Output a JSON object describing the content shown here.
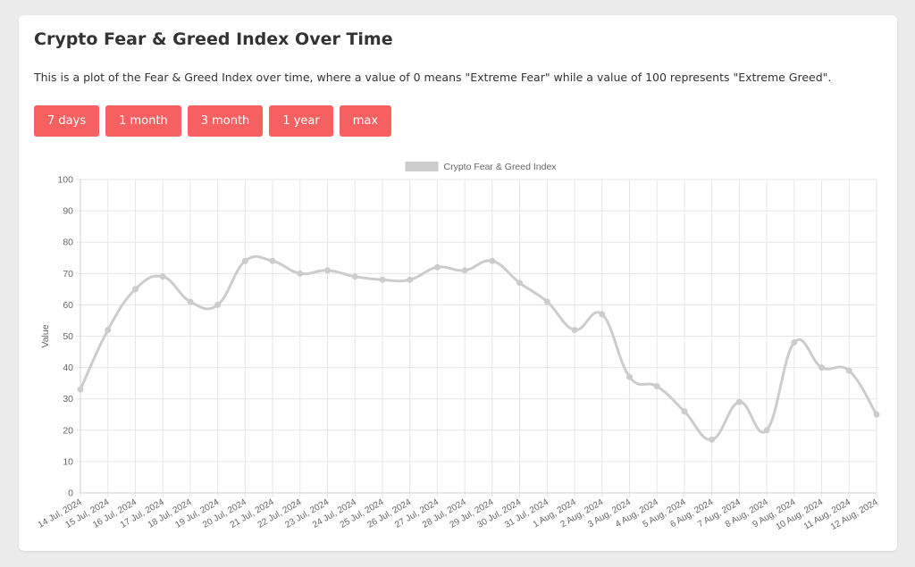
{
  "header": {
    "title": "Crypto Fear & Greed Index Over Time",
    "description": "This is a plot of the Fear & Greed Index over time, where a value of 0 means \"Extreme Fear\" while a value of 100 represents \"Extreme Greed\"."
  },
  "range_buttons": [
    {
      "label": "7 days"
    },
    {
      "label": "1 month"
    },
    {
      "label": "3 month"
    },
    {
      "label": "1 year"
    },
    {
      "label": "max"
    }
  ],
  "colors": {
    "button": "#f76060",
    "series": "#cccccc",
    "grid": "#e6e6e6",
    "text": "#666666"
  },
  "chart_data": {
    "type": "line",
    "title": "",
    "xlabel": "",
    "ylabel": "Value",
    "ylim": [
      0,
      100
    ],
    "yticks": [
      0,
      10,
      20,
      30,
      40,
      50,
      60,
      70,
      80,
      90,
      100
    ],
    "grid": true,
    "legend_position": "top-center",
    "categories": [
      "14 Jul, 2024",
      "15 Jul, 2024",
      "16 Jul, 2024",
      "17 Jul, 2024",
      "18 Jul, 2024",
      "19 Jul, 2024",
      "20 Jul, 2024",
      "21 Jul, 2024",
      "22 Jul, 2024",
      "23 Jul, 2024",
      "24 Jul, 2024",
      "25 Jul, 2024",
      "26 Jul, 2024",
      "27 Jul, 2024",
      "28 Jul, 2024",
      "29 Jul, 2024",
      "30 Jul, 2024",
      "31 Jul, 2024",
      "1 Aug, 2024",
      "2 Aug, 2024",
      "3 Aug, 2024",
      "4 Aug, 2024",
      "5 Aug, 2024",
      "6 Aug, 2024",
      "7 Aug, 2024",
      "8 Aug, 2024",
      "9 Aug, 2024",
      "10 Aug, 2024",
      "11 Aug, 2024",
      "12 Aug, 2024"
    ],
    "series": [
      {
        "name": "Crypto Fear & Greed Index",
        "color": "#cccccc",
        "values": [
          33,
          52,
          65,
          69,
          61,
          60,
          74,
          74,
          70,
          71,
          69,
          68,
          68,
          72,
          71,
          74,
          67,
          61,
          52,
          57,
          37,
          34,
          26,
          17,
          29,
          20,
          48,
          40,
          39,
          25
        ]
      }
    ]
  }
}
